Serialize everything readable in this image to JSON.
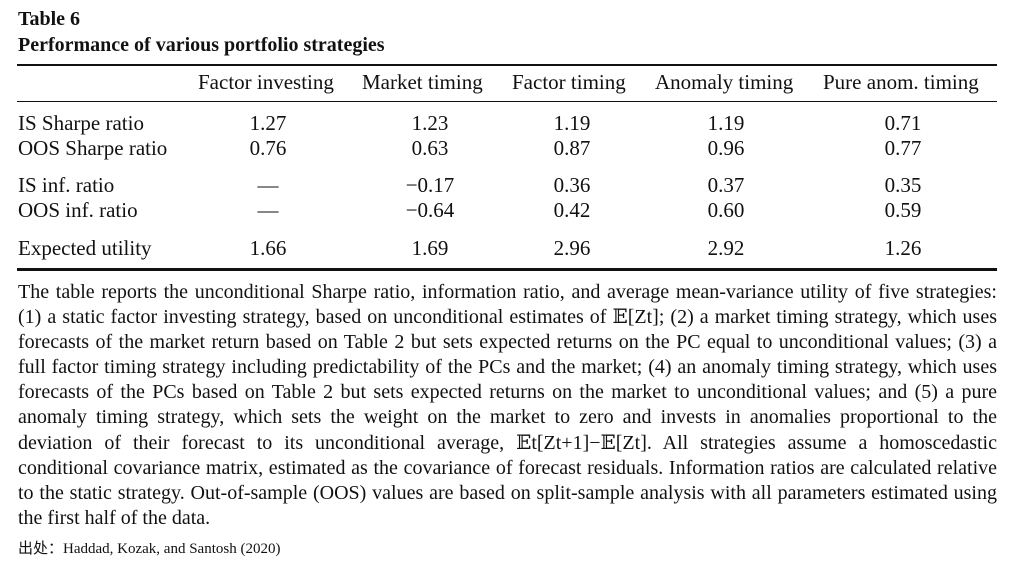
{
  "table": {
    "label": "Table 6",
    "title": "Performance of various portfolio strategies",
    "columns": [
      "Factor investing",
      "Market timing",
      "Factor timing",
      "Anomaly timing",
      "Pure anom. timing"
    ],
    "rows": [
      {
        "label": "IS Sharpe ratio",
        "values": [
          "1.27",
          "1.23",
          "1.19",
          "1.19",
          "0.71"
        ]
      },
      {
        "label": "OOS Sharpe ratio",
        "values": [
          "0.76",
          "0.63",
          "0.87",
          "0.96",
          "0.77"
        ]
      },
      {
        "label": "IS inf. ratio",
        "values": [
          "—",
          "−0.17",
          "0.36",
          "0.37",
          "0.35"
        ]
      },
      {
        "label": "OOS inf. ratio",
        "values": [
          "—",
          "−0.64",
          "0.42",
          "0.60",
          "0.59"
        ]
      },
      {
        "label": "Expected utility",
        "values": [
          "1.66",
          "1.69",
          "2.96",
          "2.92",
          "1.26"
        ]
      }
    ]
  },
  "caption": "The table reports the unconditional Sharpe ratio, information ratio, and average mean-variance utility of five strategies: (1) a static factor investing strategy, based on unconditional estimates of 𝔼[Zt]; (2) a market timing strategy, which uses forecasts of the market return based on Table 2 but sets expected returns on the PC equal to unconditional values; (3) a full factor timing strategy including predictability of the PCs and the market; (4) an anomaly timing strategy, which uses forecasts of the PCs based on Table 2 but sets expected returns on the market to unconditional values; and (5) a pure anomaly timing strategy, which sets the weight on the market to zero and invests in anomalies proportional to the deviation of their forecast to its unconditional average, 𝔼t[Zt+1]−𝔼[Zt]. All strategies assume a homoscedastic conditional covariance matrix, estimated as the covariance of forecast residuals. Information ratios are calculated relative to the static strategy. Out-of-sample (OOS) values are based on split-sample analysis with all parameters estimated using the first half of the data.",
  "source": "出处：Haddad, Kozak, and Santosh (2020)"
}
